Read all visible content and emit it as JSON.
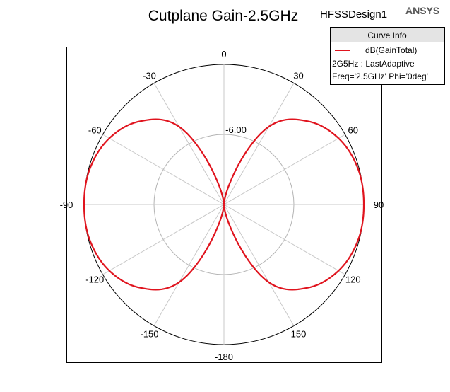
{
  "window": {
    "design_name": "HFSSDesign1",
    "brand": "ANSYS"
  },
  "legend": {
    "header": "Curve Info",
    "entries": [
      {
        "label": "dB(GainTotal)",
        "setup": "2G5Hz : LastAdaptive",
        "params": "Freq='2.5GHz' Phi='0deg'",
        "color": "#e0141e"
      }
    ]
  },
  "chart_data": {
    "type": "polar",
    "title": "Cutplane Gain-2.5GHz",
    "angle_unit": "deg",
    "zero_direction": "top",
    "angle_labels": [
      "0",
      "30",
      "60",
      "90",
      "120",
      "150",
      "-180",
      "-150",
      "-120",
      "-90",
      "-60",
      "-30"
    ],
    "angle_values": [
      0,
      30,
      60,
      90,
      120,
      150,
      180,
      -150,
      -120,
      -90,
      -60,
      -30
    ],
    "radial_tick_labels": [
      "-6.00"
    ],
    "radial_ticks": [
      -6.0
    ],
    "radial_range": [
      -12.0,
      0.0
    ],
    "grid": true,
    "legend_position": "top-right",
    "series": [
      {
        "name": "dB(GainTotal)",
        "color": "#e0141e",
        "theta_deg": [
          0,
          15,
          30,
          45,
          60,
          75,
          90,
          105,
          120,
          135,
          150,
          165,
          180,
          195,
          210,
          225,
          240,
          255,
          270,
          285,
          300,
          315,
          330,
          345,
          360
        ],
        "gain_db": [
          -12.0,
          -10.2,
          -4.3,
          -1.9,
          -0.65,
          -0.1,
          0.0,
          -0.1,
          -0.65,
          -1.9,
          -4.3,
          -10.2,
          -12.0,
          -10.2,
          -4.3,
          -1.9,
          -0.65,
          -0.1,
          0.0,
          -0.1,
          -0.65,
          -1.9,
          -4.3,
          -10.2,
          -12.0
        ]
      }
    ]
  }
}
